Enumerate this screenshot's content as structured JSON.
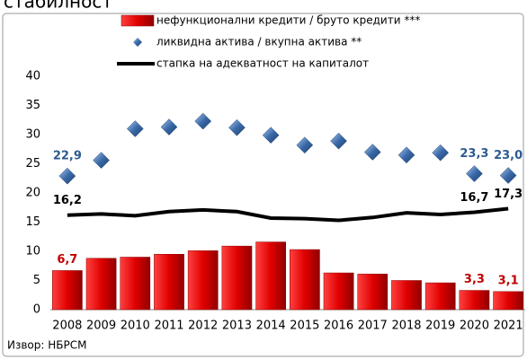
{
  "chart_data": {
    "type": "bar",
    "title": "стабилност",
    "source": "Извор: НБРСМ",
    "categories": [
      "2008",
      "2009",
      "2010",
      "2011",
      "2012",
      "2013",
      "2014",
      "2015",
      "2016",
      "2017",
      "2018",
      "2019",
      "2020",
      "2021"
    ],
    "series": [
      {
        "name": "нефункционални кредити / бруто кредити ***",
        "type": "bar",
        "color": "#e00000",
        "values": [
          6.7,
          8.8,
          9.0,
          9.5,
          10.1,
          10.9,
          11.6,
          10.3,
          6.3,
          6.1,
          5.0,
          4.6,
          3.3,
          3.1
        ],
        "value_labels": [
          "6,7",
          null,
          null,
          null,
          null,
          null,
          null,
          null,
          null,
          null,
          null,
          null,
          "3,3",
          "3,1"
        ]
      },
      {
        "name": "ликвидна актива / вкупна актива **",
        "type": "scatter",
        "color": "#3a6aa8",
        "values": [
          22.9,
          25.6,
          31.0,
          31.3,
          32.3,
          31.2,
          29.9,
          28.2,
          28.9,
          27.0,
          26.5,
          26.9,
          23.3,
          23.0
        ],
        "value_labels": [
          "22,9",
          null,
          null,
          null,
          null,
          null,
          null,
          null,
          null,
          null,
          null,
          null,
          "23,3",
          "23,0"
        ]
      },
      {
        "name": "стапка на адекватност на капиталот",
        "type": "line",
        "color": "#000000",
        "values": [
          16.2,
          16.4,
          16.1,
          16.8,
          17.1,
          16.8,
          15.7,
          15.6,
          15.3,
          15.8,
          16.6,
          16.3,
          16.7,
          17.3
        ],
        "value_labels": [
          "16,2",
          null,
          null,
          null,
          null,
          null,
          null,
          null,
          null,
          null,
          null,
          null,
          "16,7",
          "17,3"
        ]
      }
    ],
    "ylim": [
      0,
      40
    ],
    "yticks": [
      0,
      5,
      10,
      15,
      20,
      25,
      30,
      35,
      40
    ],
    "grid": false
  }
}
